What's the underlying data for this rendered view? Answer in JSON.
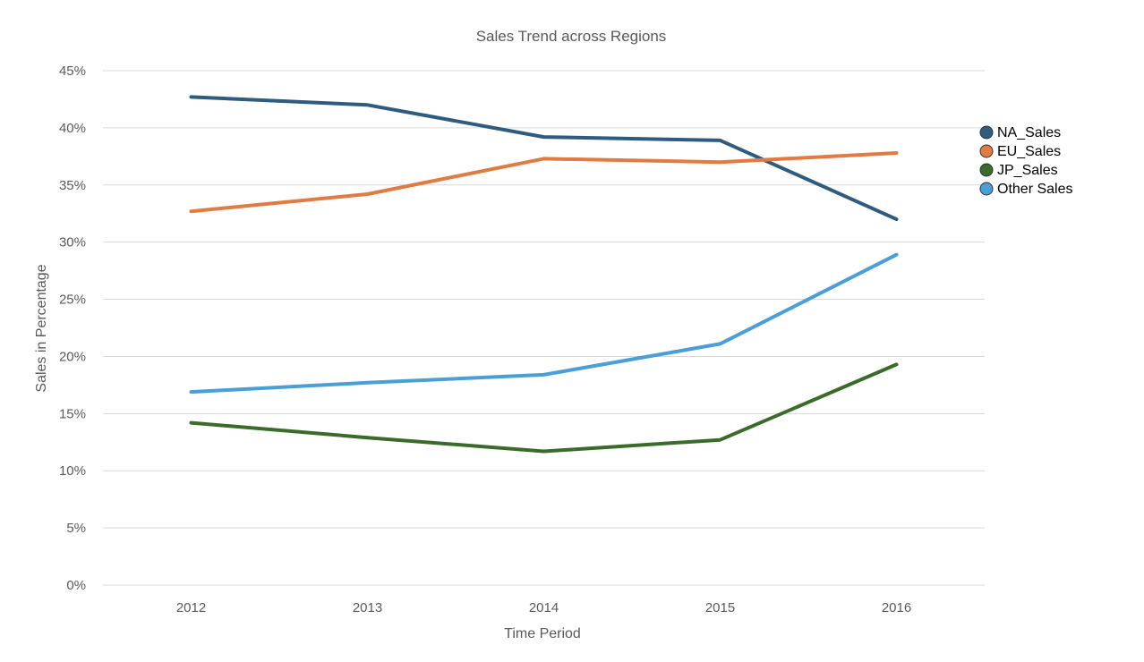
{
  "chart_data": {
    "type": "line",
    "title": "Sales Trend across Regions",
    "xlabel": "Time Period",
    "ylabel": "Sales in Percentage",
    "categories": [
      "2012",
      "2013",
      "2014",
      "2015",
      "2016"
    ],
    "ylim": [
      0,
      45
    ],
    "yticks": [
      0,
      5,
      10,
      15,
      20,
      25,
      30,
      35,
      40,
      45
    ],
    "ytick_labels": [
      "0%",
      "5%",
      "10%",
      "15%",
      "20%",
      "25%",
      "30%",
      "35%",
      "40%",
      "45%"
    ],
    "grid": true,
    "legend_position": "right",
    "series": [
      {
        "name": "NA_Sales",
        "color": "#2e5b7e",
        "values": [
          42.7,
          42.0,
          39.2,
          38.9,
          32.0
        ]
      },
      {
        "name": "EU_Sales",
        "color": "#e07b42",
        "values": [
          32.7,
          34.2,
          37.3,
          37.0,
          37.8
        ]
      },
      {
        "name": "JP_Sales",
        "color": "#3a6b2a",
        "values": [
          14.2,
          12.9,
          11.7,
          12.7,
          19.3
        ]
      },
      {
        "name": "Other Sales",
        "color": "#4aa0d6",
        "values": [
          16.9,
          17.7,
          18.4,
          21.1,
          28.9
        ]
      }
    ]
  }
}
